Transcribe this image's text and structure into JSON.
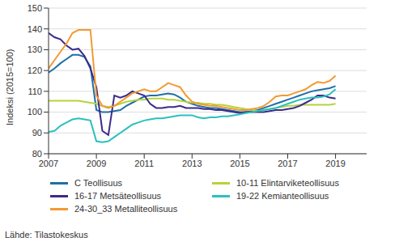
{
  "chart_data": {
    "type": "line",
    "y_label": "Indeksi (2015=100)",
    "source": "Lähde: Tilastokeskus",
    "legend": "bottom",
    "grid": true,
    "x": [
      2007,
      2007.25,
      2007.5,
      2007.75,
      2008,
      2008.25,
      2008.5,
      2008.75,
      2009,
      2009.25,
      2009.5,
      2009.75,
      2010,
      2010.25,
      2010.5,
      2010.75,
      2011,
      2011.25,
      2011.5,
      2011.75,
      2012,
      2012.25,
      2012.5,
      2012.75,
      2013,
      2013.25,
      2013.5,
      2013.75,
      2014,
      2014.25,
      2014.5,
      2014.75,
      2015,
      2015.25,
      2015.5,
      2015.75,
      2016,
      2016.25,
      2016.5,
      2016.75,
      2017,
      2017.25,
      2017.5,
      2017.75,
      2018,
      2018.25,
      2018.5,
      2018.75,
      2019
    ],
    "xlim": [
      2007,
      2020.3
    ],
    "xticks": [
      2007,
      2009,
      2011,
      2013,
      2015,
      2017,
      2019
    ],
    "ylim": [
      80,
      150
    ],
    "yticks": [
      80,
      90,
      100,
      110,
      120,
      130,
      140,
      150
    ],
    "series": [
      {
        "name": "C Teollisuus",
        "color": "#1f6fa8",
        "values": [
          119,
          121,
          123.5,
          125.5,
          127.5,
          127.5,
          126.5,
          122,
          101,
          100,
          100,
          100.5,
          101,
          103,
          104.5,
          106,
          107.5,
          108,
          108,
          108.5,
          109,
          108.5,
          107,
          105,
          104,
          103,
          102.5,
          102,
          102,
          101.5,
          101,
          100.5,
          100,
          100,
          100.5,
          101,
          102,
          103,
          104,
          105,
          106,
          107,
          108,
          109,
          110,
          110.5,
          111,
          111.5,
          112.5
        ]
      },
      {
        "name": "10-11 Elintarviketeollisuus",
        "color": "#b5d33d",
        "values": [
          105.5,
          105.5,
          105.5,
          105.5,
          105.5,
          105.5,
          105,
          104.5,
          104,
          103,
          102.5,
          103,
          104,
          105,
          105.5,
          106,
          106,
          106.5,
          106.5,
          106.5,
          106,
          106,
          105.5,
          105,
          104.5,
          104.5,
          104,
          104,
          103.5,
          103.5,
          103,
          102.5,
          102,
          101.5,
          101,
          100.5,
          101,
          101.5,
          102,
          102.5,
          103,
          103,
          103.5,
          103.5,
          103.5,
          103.5,
          103.5,
          103.5,
          104
        ]
      },
      {
        "name": "16-17 Metsäteollisuus",
        "color": "#3d2a8a",
        "values": [
          138,
          136,
          135,
          132,
          130,
          130.5,
          127,
          121,
          112,
          91,
          89,
          108,
          107,
          108,
          110,
          109,
          108,
          104,
          102,
          102,
          102.5,
          102.5,
          103,
          102,
          102,
          102,
          101.5,
          101.5,
          101,
          101,
          100.5,
          100,
          99.5,
          100,
          100,
          100,
          100,
          100.5,
          101,
          101,
          101.5,
          102,
          103,
          104.5,
          106,
          108,
          108,
          107,
          106.5
        ]
      },
      {
        "name": "19-22 Kemianteollisuus",
        "color": "#2bbfbf",
        "values": [
          90.5,
          91,
          93.5,
          95,
          96.5,
          97,
          96.5,
          96,
          86,
          85.5,
          86,
          88,
          90,
          92,
          94,
          95,
          96,
          96.5,
          97,
          97,
          97.5,
          98,
          98.5,
          98.5,
          98.5,
          97.5,
          97,
          97.5,
          97.5,
          98,
          98,
          98.5,
          99,
          99.5,
          100,
          100.5,
          101,
          101.5,
          102,
          103,
          104,
          105,
          106,
          106.5,
          107,
          107,
          107.5,
          108.5,
          111
        ]
      },
      {
        "name": "24-30_33 Metalliteollisuus",
        "color": "#f39a32",
        "values": [
          121,
          125,
          129,
          133,
          138,
          139.5,
          139.5,
          139.5,
          108,
          103,
          102,
          103,
          105,
          107,
          109,
          110,
          111,
          110,
          110,
          112,
          114,
          113,
          112,
          108,
          105,
          104,
          103.5,
          103,
          103,
          102.5,
          102,
          101.5,
          101,
          101,
          101.5,
          102,
          103,
          105,
          107.5,
          108,
          108,
          109,
          110,
          111,
          113,
          114.5,
          114,
          115,
          117.5
        ]
      }
    ]
  }
}
